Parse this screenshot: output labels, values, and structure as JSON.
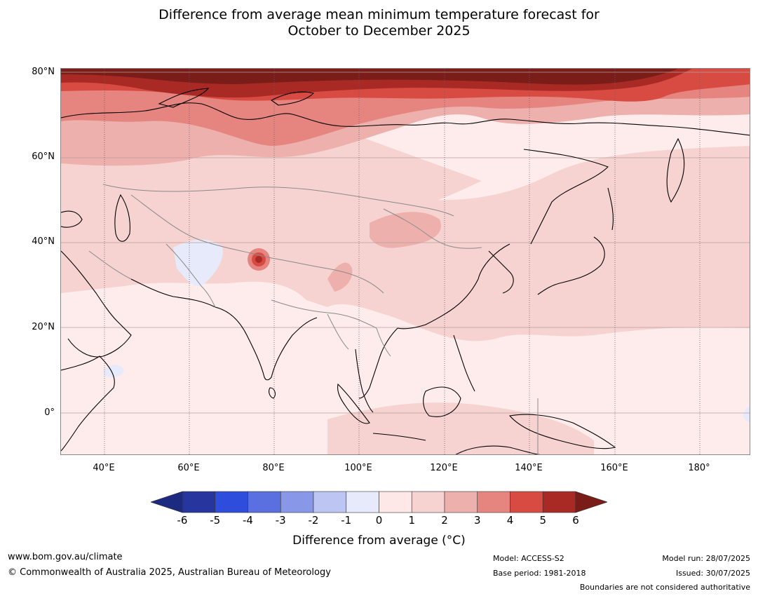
{
  "title_line1": "Difference from average mean minimum temperature forecast for",
  "title_line2": "October to December 2025",
  "lat_labels": [
    "80°N",
    "60°N",
    "40°N",
    "20°N",
    "0°"
  ],
  "lon_labels": [
    "40°E",
    "60°E",
    "80°E",
    "100°E",
    "120°E",
    "140°E",
    "160°E",
    "180°"
  ],
  "colorbar": {
    "ticks": [
      "-6",
      "-5",
      "-4",
      "-3",
      "-2",
      "-1",
      "0",
      "1",
      "2",
      "3",
      "4",
      "5",
      "6"
    ],
    "colors": [
      "#27369f",
      "#2f4ddc",
      "#5a6fe0",
      "#8897e8",
      "#bdc5f3",
      "#e7eafb",
      "#fde8e7",
      "#f6d3d1",
      "#eeb0ac",
      "#e6847f",
      "#d84b43",
      "#a92a24"
    ],
    "under_color": "#1c2a80",
    "over_color": "#7a1c17",
    "label": "Difference from average (°C)"
  },
  "footer": {
    "url": "www.bom.gov.au/climate",
    "copyright": "© Commonwealth of Australia 2025, Australian Bureau of Meteorology",
    "model": "Model: ACCESS-S2",
    "base_period": "Base period: 1981-2018",
    "model_run": "Model run: 28/07/2025",
    "issued": "Issued: 30/07/2025",
    "disclaimer": "Boundaries are not considered authoritative"
  }
}
